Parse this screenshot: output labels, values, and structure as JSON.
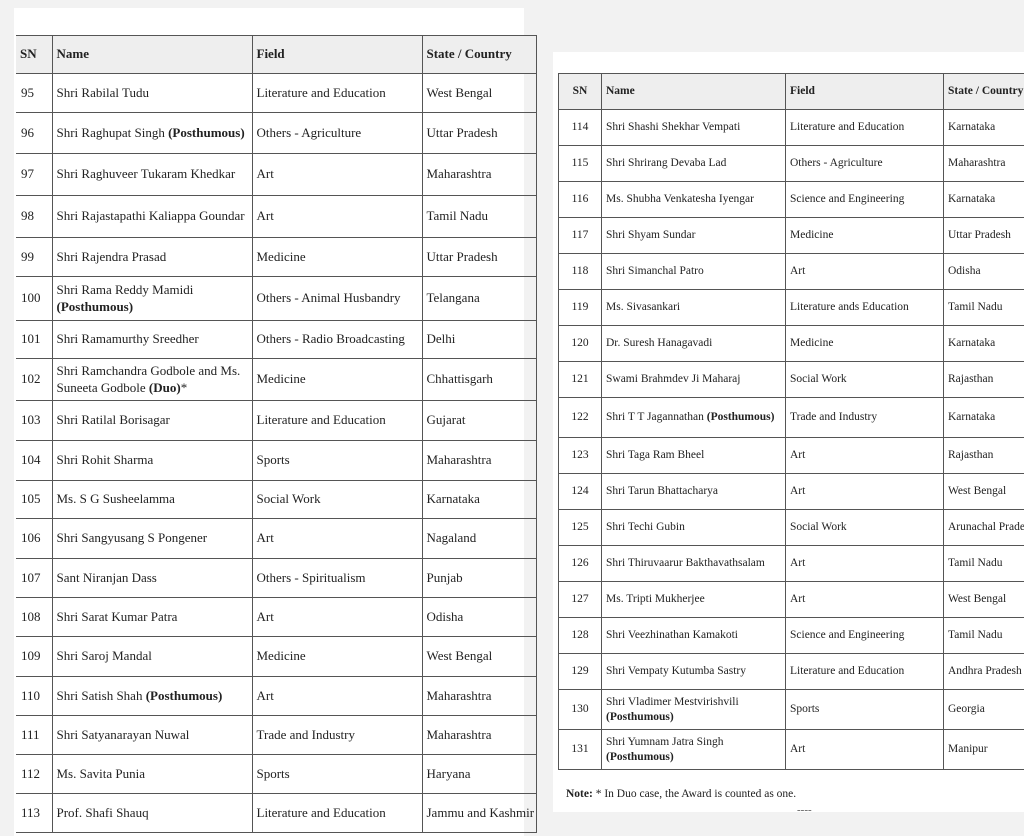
{
  "headers": {
    "sn": "SN",
    "name": "Name",
    "field": "Field",
    "state": "State / Country"
  },
  "left_table": [
    {
      "sn": "95",
      "name": [
        {
          "t": "Shri Rabilal Tudu"
        }
      ],
      "field": "Literature and Education",
      "state": "West Bengal"
    },
    {
      "sn": "96",
      "name": [
        {
          "t": "Shri Raghupat Singh "
        },
        {
          "t": "(Posthumous)",
          "b": true
        }
      ],
      "field": "Others - Agriculture",
      "state": "Uttar Pradesh"
    },
    {
      "sn": "97",
      "name": [
        {
          "t": "Shri Raghuveer Tukaram Khedkar"
        }
      ],
      "field": "Art",
      "state": "Maharashtra"
    },
    {
      "sn": "98",
      "name": [
        {
          "t": "Shri Rajastapathi Kaliappa Goundar"
        }
      ],
      "field": "Art",
      "state": "Tamil Nadu"
    },
    {
      "sn": "99",
      "name": [
        {
          "t": "Shri Rajendra Prasad"
        }
      ],
      "field": "Medicine",
      "state": "Uttar Pradesh"
    },
    {
      "sn": "100",
      "name": [
        {
          "t": "Shri Rama Reddy Mamidi "
        },
        {
          "t": "(Posthumous)",
          "b": true
        }
      ],
      "field": "Others - Animal Husbandry",
      "state": "Telangana"
    },
    {
      "sn": "101",
      "name": [
        {
          "t": "Shri Ramamurthy Sreedher"
        }
      ],
      "field": "Others - Radio Broadcasting",
      "state": "Delhi"
    },
    {
      "sn": "102",
      "name": [
        {
          "t": "Shri Ramchandra Godbole and Ms. Suneeta Godbole "
        },
        {
          "t": "(Duo)",
          "b": true
        },
        {
          "t": "*"
        }
      ],
      "field": "Medicine",
      "state": "Chhattisgarh"
    },
    {
      "sn": "103",
      "name": [
        {
          "t": "Shri Ratilal Borisagar"
        }
      ],
      "field": "Literature and Education",
      "state": "Gujarat"
    },
    {
      "sn": "104",
      "name": [
        {
          "t": "Shri Rohit Sharma"
        }
      ],
      "field": "Sports",
      "state": "Maharashtra"
    },
    {
      "sn": "105",
      "name": [
        {
          "t": "Ms. S G Susheelamma"
        }
      ],
      "field": "Social Work",
      "state": "Karnataka"
    },
    {
      "sn": "106",
      "name": [
        {
          "t": "Shri Sangyusang S Pongener"
        }
      ],
      "field": "Art",
      "state": "Nagaland"
    },
    {
      "sn": "107",
      "name": [
        {
          "t": "Sant Niranjan Dass"
        }
      ],
      "field": "Others - Spiritualism",
      "state": "Punjab"
    },
    {
      "sn": "108",
      "name": [
        {
          "t": "Shri Sarat Kumar Patra"
        }
      ],
      "field": "Art",
      "state": "Odisha"
    },
    {
      "sn": "109",
      "name": [
        {
          "t": "Shri Saroj Mandal"
        }
      ],
      "field": "Medicine",
      "state": "West Bengal"
    },
    {
      "sn": "110",
      "name": [
        {
          "t": "Shri Satish Shah "
        },
        {
          "t": "(Posthumous)",
          "b": true
        }
      ],
      "field": "Art",
      "state": "Maharashtra"
    },
    {
      "sn": "111",
      "name": [
        {
          "t": "Shri Satyanarayan Nuwal"
        }
      ],
      "field": "Trade and Industry",
      "state": "Maharashtra"
    },
    {
      "sn": "112",
      "name": [
        {
          "t": "Ms. Savita Punia"
        }
      ],
      "field": "Sports",
      "state": "Haryana"
    },
    {
      "sn": "113",
      "name": [
        {
          "t": "Prof. Shafi Shauq"
        }
      ],
      "field": "Literature and Education",
      "state": "Jammu and Kashmir"
    }
  ],
  "right_table": [
    {
      "sn": "114",
      "name": [
        {
          "t": "Shri Shashi Shekhar Vempati"
        }
      ],
      "field": "Literature and Education",
      "state": "Karnataka"
    },
    {
      "sn": "115",
      "name": [
        {
          "t": "Shri Shrirang Devaba Lad"
        }
      ],
      "field": "Others - Agriculture",
      "state": "Maharashtra"
    },
    {
      "sn": "116",
      "name": [
        {
          "t": "Ms. Shubha Venkatesha Iyengar"
        }
      ],
      "field": "Science and Engineering",
      "state": "Karnataka"
    },
    {
      "sn": "117",
      "name": [
        {
          "t": "Shri Shyam Sundar"
        }
      ],
      "field": "Medicine",
      "state": "Uttar Pradesh"
    },
    {
      "sn": "118",
      "name": [
        {
          "t": "Shri Simanchal Patro"
        }
      ],
      "field": "Art",
      "state": "Odisha"
    },
    {
      "sn": "119",
      "name": [
        {
          "t": "Ms. Sivasankari"
        }
      ],
      "field": "Literature ands Education",
      "state": "Tamil Nadu"
    },
    {
      "sn": "120",
      "name": [
        {
          "t": "Dr. Suresh Hanagavadi"
        }
      ],
      "field": "Medicine",
      "state": "Karnataka"
    },
    {
      "sn": "121",
      "name": [
        {
          "t": "Swami Brahmdev Ji Maharaj"
        }
      ],
      "field": "Social Work",
      "state": "Rajasthan"
    },
    {
      "sn": "122",
      "name": [
        {
          "t": "Shri T T Jagannathan "
        },
        {
          "t": "(Posthumous)",
          "b": true
        }
      ],
      "field": "Trade and Industry",
      "state": "Karnataka"
    },
    {
      "sn": "123",
      "name": [
        {
          "t": "Shri Taga Ram Bheel"
        }
      ],
      "field": "Art",
      "state": "Rajasthan"
    },
    {
      "sn": "124",
      "name": [
        {
          "t": "Shri Tarun Bhattacharya"
        }
      ],
      "field": "Art",
      "state": "West Bengal"
    },
    {
      "sn": "125",
      "name": [
        {
          "t": "Shri Techi Gubin"
        }
      ],
      "field": "Social Work",
      "state": "Arunachal Pradesh"
    },
    {
      "sn": "126",
      "name": [
        {
          "t": "Shri Thiruvaarur Bakthavathsalam"
        }
      ],
      "field": "Art",
      "state": "Tamil Nadu"
    },
    {
      "sn": "127",
      "name": [
        {
          "t": "Ms. Tripti Mukherjee"
        }
      ],
      "field": "Art",
      "state": "West Bengal"
    },
    {
      "sn": "128",
      "name": [
        {
          "t": "Shri Veezhinathan Kamakoti"
        }
      ],
      "field": "Science and Engineering",
      "state": "Tamil Nadu"
    },
    {
      "sn": "129",
      "name": [
        {
          "t": "Shri Vempaty Kutumba Sastry"
        }
      ],
      "field": "Literature and Education",
      "state": "Andhra Pradesh"
    },
    {
      "sn": "130",
      "name": [
        {
          "t": "Shri Vladimer Mestvirishvili "
        },
        {
          "t": "(Posthumous)",
          "b": true
        }
      ],
      "field": "Sports",
      "state": "Georgia"
    },
    {
      "sn": "131",
      "name": [
        {
          "t": "Shri Yumnam Jatra Singh "
        },
        {
          "t": "(Posthumous)",
          "b": true
        }
      ],
      "field": "Art",
      "state": "Manipur"
    }
  ],
  "note": {
    "label": "Note:",
    "text": " * In Duo case, the Award is counted as one."
  },
  "end_mark": "----"
}
